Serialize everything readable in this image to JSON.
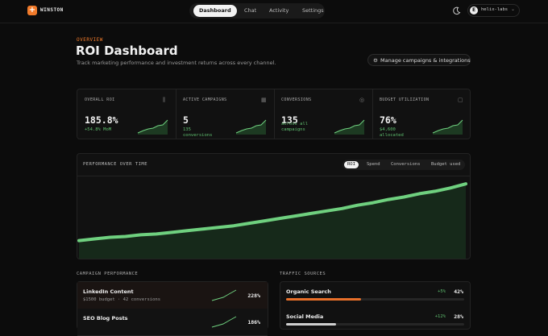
{
  "nav": {
    "brand": "WINSTON",
    "tabs": [
      "Dashboard",
      "Chat",
      "Activity",
      "Settings"
    ],
    "active_tab": 0,
    "avatar": "E",
    "workspace": "helix-labs"
  },
  "header": {
    "eyebrow": "OVERVIEW",
    "title": "ROI Dashboard",
    "subtitle": "Track marketing performance and investment returns across every channel.",
    "button": "Manage campaigns & integrations"
  },
  "kpis": [
    {
      "label": "OVERALL ROI",
      "value": "185.8%",
      "note": "+54.8% MoM"
    },
    {
      "label": "ACTIVE CAMPAIGNS",
      "value": "5",
      "note": "135 conversions"
    },
    {
      "label": "CONVERSIONS",
      "value": "135",
      "note": "across all campaigns"
    },
    {
      "label": "BUDGET UTILIZATION",
      "value": "76%",
      "note": "$4,600 allocated"
    }
  ],
  "performance": {
    "title": "PERFORMANCE OVER TIME",
    "tabs": [
      "ROI",
      "Spend",
      "Conversions",
      "Budget used"
    ],
    "active_tab": 0,
    "ylim": [
      0,
      100
    ],
    "values": [
      22,
      24,
      26,
      27,
      29,
      30,
      32,
      34,
      36,
      38,
      40,
      43,
      46,
      49,
      52,
      55,
      58,
      61,
      65,
      68,
      72,
      75,
      79,
      82,
      86,
      91
    ]
  },
  "campaigns": {
    "title": "CAMPAIGN PERFORMANCE",
    "rows": [
      {
        "name": "LinkedIn Content",
        "detail": "$1500 budget · 42 conversions",
        "roi": "228%"
      },
      {
        "name": "SEO Blog Posts",
        "detail": "",
        "roi": "186%"
      }
    ]
  },
  "traffic": {
    "title": "TRAFFIC SOURCES",
    "rows": [
      {
        "name": "Organic Search",
        "change": "+5%",
        "share": "42%"
      },
      {
        "name": "Social Media",
        "change": "+12%",
        "share": "28%"
      }
    ]
  }
}
